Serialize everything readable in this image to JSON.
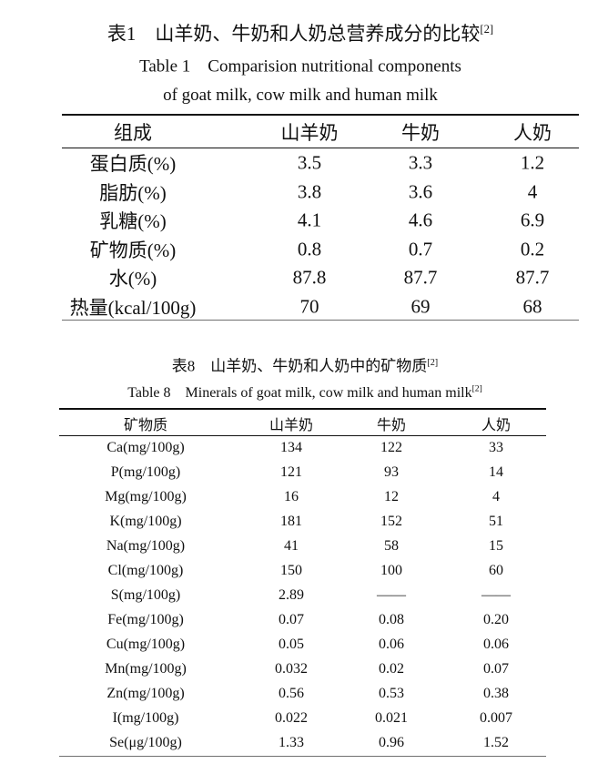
{
  "table1": {
    "title": "表1　山羊奶、牛奶和人奶总营养成分的比较",
    "title_ref": "[2]",
    "title_en": [
      "Table 1　Comparision nutritional components",
      "of goat milk, cow milk and human milk"
    ],
    "header": [
      "组成",
      "山羊奶",
      "牛奶",
      "人奶"
    ],
    "rows": [
      [
        "蛋白质(%)",
        "3.5",
        "3.3",
        "1.2"
      ],
      [
        "脂肪(%)",
        "3.8",
        "3.6",
        "4"
      ],
      [
        "乳糖(%)",
        "4.1",
        "4.6",
        "6.9"
      ],
      [
        "矿物质(%)",
        "0.8",
        "0.7",
        "0.2"
      ],
      [
        "水(%)",
        "87.8",
        "87.7",
        "87.7"
      ],
      [
        "热量(kcal/100g)",
        "70",
        "69",
        "68"
      ]
    ]
  },
  "table8": {
    "title": "表8　山羊奶、牛奶和人奶中的矿物质",
    "title_ref": "[2]",
    "title_en": "Table 8　Minerals of goat milk, cow milk and human milk",
    "title_en_ref": "[2]",
    "header": [
      "矿物质",
      "山羊奶",
      "牛奶",
      "人奶"
    ],
    "rows": [
      [
        "Ca(mg/100g)",
        "134",
        "122",
        "33"
      ],
      [
        "P(mg/100g)",
        "121",
        "93",
        "14"
      ],
      [
        "Mg(mg/100g)",
        "16",
        "12",
        "4"
      ],
      [
        "K(mg/100g)",
        "181",
        "152",
        "51"
      ],
      [
        "Na(mg/100g)",
        "41",
        "58",
        "15"
      ],
      [
        "Cl(mg/100g)",
        "150",
        "100",
        "60"
      ],
      [
        "S(mg/100g)",
        "2.89",
        "——",
        "——"
      ],
      [
        "Fe(mg/100g)",
        "0.07",
        "0.08",
        "0.20"
      ],
      [
        "Cu(mg/100g)",
        "0.05",
        "0.06",
        "0.06"
      ],
      [
        "Mn(mg/100g)",
        "0.032",
        "0.02",
        "0.07"
      ],
      [
        "Zn(mg/100g)",
        "0.56",
        "0.53",
        "0.38"
      ],
      [
        "I(mg/100g)",
        "0.022",
        "0.021",
        "0.007"
      ],
      [
        "Se(μg/100g)",
        "1.33",
        "0.96",
        "1.52"
      ]
    ]
  }
}
